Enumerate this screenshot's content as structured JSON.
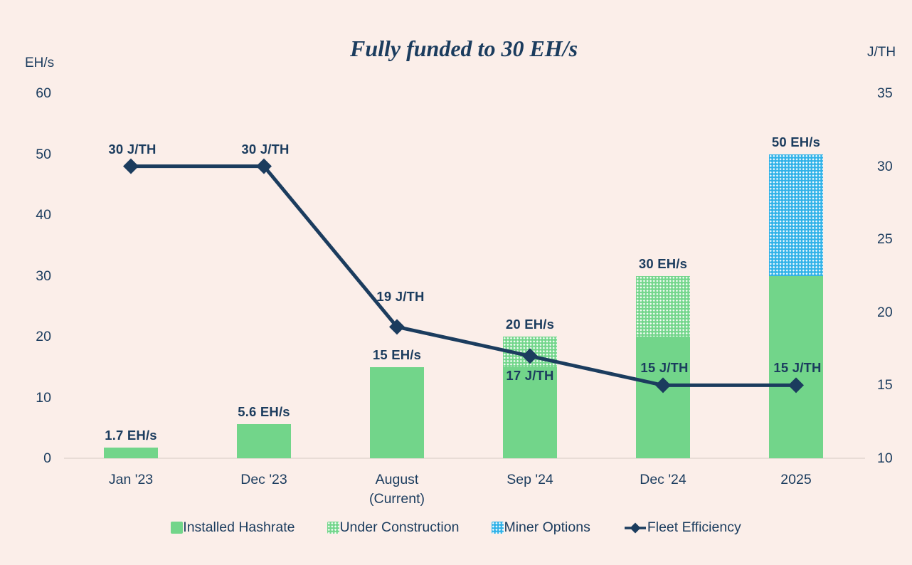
{
  "title": "Fully funded to 30 EH/s",
  "axes": {
    "left": {
      "unit": "EH/s",
      "ticks": [
        60,
        50,
        40,
        30,
        20,
        10,
        0
      ],
      "range": [
        0,
        60
      ]
    },
    "right": {
      "unit": "J/TH",
      "ticks": [
        35,
        30,
        25,
        20,
        15,
        10
      ],
      "range": [
        10,
        35
      ]
    }
  },
  "chart_data": {
    "type": "bar",
    "subtype": "stacked-bars-with-line",
    "title": "Fully funded to 30 EH/s",
    "categories": [
      {
        "label": "Jan '23"
      },
      {
        "label": "Dec '23"
      },
      {
        "label": "August",
        "sublabel": "(Current)"
      },
      {
        "label": "Sep '24"
      },
      {
        "label": "Dec '24"
      },
      {
        "label": "2025"
      }
    ],
    "bar_series": [
      {
        "name": "Installed Hashrate",
        "style": "solid-green",
        "values": [
          1.7,
          5.6,
          15,
          15,
          20,
          30
        ]
      },
      {
        "name": "Under Construction",
        "style": "pattern-green",
        "values": [
          0,
          0,
          0,
          5,
          10,
          0
        ]
      },
      {
        "name": "Miner Options",
        "style": "pattern-blue",
        "values": [
          0,
          0,
          0,
          0,
          0,
          20
        ]
      }
    ],
    "bar_total_labels": [
      "1.7 EH/s",
      "5.6 EH/s",
      "15 EH/s",
      "20 EH/s",
      "30 EH/s",
      "50 EH/s"
    ],
    "line_series": {
      "name": "Fleet Efficiency",
      "axis": "right",
      "values": [
        30,
        30,
        19,
        17,
        15,
        15
      ],
      "labels": [
        "30 J/TH",
        "30 J/TH",
        "19 J/TH",
        "17 J/TH",
        "15 J/TH",
        "15 J/TH"
      ],
      "label_placement": [
        "above",
        "above",
        "above-high",
        "below",
        "above",
        "above"
      ]
    },
    "legend": [
      {
        "label": "Installed Hashrate",
        "swatch": "solid-green"
      },
      {
        "label": "Under Construction",
        "swatch": "pattern-green"
      },
      {
        "label": "Miner Options",
        "swatch": "pattern-blue"
      },
      {
        "label": "Fleet Efficiency",
        "swatch": "line-diamond"
      }
    ],
    "ylim_left": [
      0,
      60
    ],
    "ylim_right": [
      10,
      35
    ],
    "grid": false,
    "legend_position": "bottom"
  },
  "colors": {
    "background": "#fbeee9",
    "navy": "#1b3c5e",
    "green": "#72d58a",
    "blue": "#31b2e8",
    "baseline": "#e8dcd6"
  }
}
